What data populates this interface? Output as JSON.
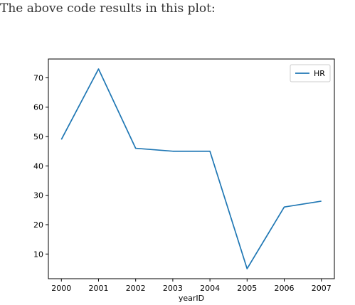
{
  "caption": "The above code results in this plot:",
  "chart_data": {
    "type": "line",
    "title": "",
    "xlabel": "yearID",
    "ylabel": "",
    "x": [
      2000,
      2001,
      2002,
      2003,
      2004,
      2005,
      2006,
      2007
    ],
    "series": [
      {
        "name": "HR",
        "values": [
          49,
          73,
          46,
          45,
          45,
          5,
          26,
          28
        ],
        "color": "#1f77b4"
      }
    ],
    "xticks": [
      "2000",
      "2001",
      "2002",
      "2003",
      "2004",
      "2005",
      "2006",
      "2007"
    ],
    "yticks": [
      "10",
      "20",
      "30",
      "40",
      "50",
      "60",
      "70"
    ],
    "ylim": [
      1.6,
      76.4
    ],
    "grid": false,
    "legend_position": "top-right"
  }
}
